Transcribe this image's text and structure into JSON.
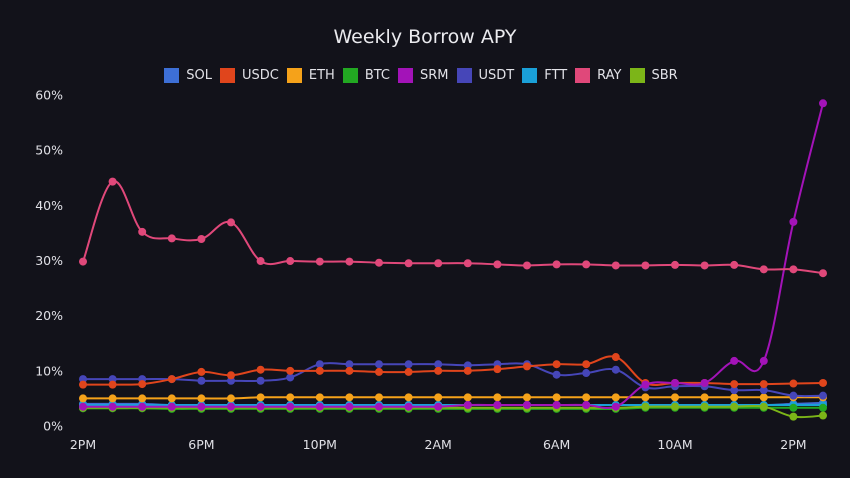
{
  "chart_data": {
    "type": "line",
    "title": "Weekly Borrow APY",
    "xlabel": "",
    "ylabel": "",
    "ylim": [
      0,
      60
    ],
    "y_ticks": [
      "0%",
      "10%",
      "20%",
      "30%",
      "40%",
      "50%",
      "60%"
    ],
    "x_tick_labels": [
      "2PM",
      "6PM",
      "10PM",
      "2AM",
      "6AM",
      "10AM",
      "2PM"
    ],
    "x_tick_index": [
      0,
      4,
      8,
      12,
      16,
      20,
      24
    ],
    "legend_position": "top-center",
    "grid": false,
    "categories": [
      "2PM",
      "3PM",
      "4PM",
      "5PM",
      "6PM",
      "7PM",
      "8PM",
      "9PM",
      "10PM",
      "11PM",
      "12AM",
      "1AM",
      "2AM",
      "3AM",
      "4AM",
      "5AM",
      "6AM",
      "7AM",
      "8AM",
      "9AM",
      "10AM",
      "11AM",
      "12PM",
      "1PM",
      "2PM",
      "3PM"
    ],
    "series": [
      {
        "name": "SOL",
        "color": "#3d6fd6",
        "values": [
          4,
          4,
          4,
          3.8,
          3.8,
          3.8,
          3.8,
          3.8,
          3.8,
          3.8,
          3.8,
          3.8,
          3.8,
          3.8,
          3.8,
          3.8,
          3.8,
          3.8,
          3.8,
          3.8,
          3.8,
          3.8,
          3.8,
          3.8,
          4,
          4.2
        ]
      },
      {
        "name": "USDC",
        "color": "#e0451c",
        "values": [
          7.5,
          7.5,
          7.6,
          8.5,
          9.8,
          9.2,
          10.2,
          10,
          10,
          10,
          9.8,
          9.8,
          10,
          10,
          10.3,
          10.8,
          11.2,
          11.2,
          12.5,
          7.8,
          7.8,
          7.8,
          7.6,
          7.6,
          7.7,
          7.8
        ]
      },
      {
        "name": "ETH",
        "color": "#f5a21a",
        "values": [
          5,
          5,
          5,
          5,
          5,
          5,
          5.2,
          5.2,
          5.2,
          5.2,
          5.2,
          5.2,
          5.2,
          5.2,
          5.2,
          5.2,
          5.2,
          5.2,
          5.2,
          5.2,
          5.2,
          5.2,
          5.2,
          5.2,
          5.2,
          5.2
        ]
      },
      {
        "name": "BTC",
        "color": "#22a822",
        "values": [
          3.2,
          3.2,
          3.2,
          3.1,
          3.1,
          3.1,
          3.1,
          3.1,
          3.1,
          3.1,
          3.1,
          3.1,
          3.1,
          3.1,
          3.1,
          3.1,
          3.1,
          3.1,
          3.1,
          3.3,
          3.3,
          3.3,
          3.3,
          3.3,
          3.3,
          3.3
        ]
      },
      {
        "name": "SRM",
        "color": "#a313b8",
        "values": [
          3.5,
          3.5,
          3.5,
          3.5,
          3.5,
          3.5,
          3.5,
          3.5,
          3.5,
          3.5,
          3.5,
          3.5,
          3.5,
          3.8,
          3.8,
          3.8,
          3.8,
          3.8,
          3.5,
          7.5,
          7.8,
          7.8,
          11.8,
          11.8,
          37,
          58.5
        ]
      },
      {
        "name": "USDT",
        "color": "#4646b8",
        "values": [
          8.5,
          8.5,
          8.5,
          8.5,
          8.2,
          8.2,
          8.2,
          8.8,
          11.2,
          11.2,
          11.2,
          11.2,
          11.2,
          11,
          11.2,
          11.2,
          9.3,
          9.6,
          10.2,
          7,
          7.2,
          7.2,
          6.5,
          6.5,
          5.5,
          5.5
        ]
      },
      {
        "name": "FTT",
        "color": "#1aa0d8",
        "values": [
          3.8,
          3.8,
          3.8,
          3.8,
          3.8,
          3.8,
          3.8,
          3.8,
          3.8,
          3.8,
          3.8,
          3.8,
          3.8,
          3.8,
          3.8,
          3.8,
          3.8,
          3.8,
          3.8,
          3.8,
          3.8,
          3.8,
          3.8,
          3.8,
          3.8,
          3.8
        ]
      },
      {
        "name": "RAY",
        "color": "#e0487a",
        "values": [
          29.8,
          44.3,
          35.2,
          34,
          33.9,
          36.9,
          29.9,
          29.9,
          29.8,
          29.8,
          29.6,
          29.5,
          29.5,
          29.5,
          29.3,
          29.1,
          29.3,
          29.3,
          29.1,
          29.1,
          29.2,
          29.1,
          29.2,
          28.4,
          28.4,
          27.7
        ]
      },
      {
        "name": "SBR",
        "color": "#7cb518",
        "values": [
          3.3,
          3.3,
          3.3,
          3.3,
          3.3,
          3.3,
          3.3,
          3.3,
          3.3,
          3.3,
          3.3,
          3.3,
          3.3,
          3.3,
          3.3,
          3.3,
          3.3,
          3.3,
          3.3,
          3.5,
          3.5,
          3.5,
          3.5,
          3.5,
          1.7,
          1.9
        ]
      }
    ]
  }
}
